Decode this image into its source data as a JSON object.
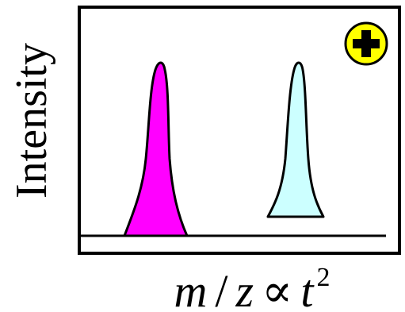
{
  "diagram": {
    "y_axis_label": "Intensity",
    "x_axis_label": {
      "m": "m",
      "slash": "/",
      "z": "z",
      "proportional": "∝",
      "t": "t",
      "exponent": "2"
    },
    "polarity_icon": "plus-icon",
    "colors": {
      "frame": "#000000",
      "peak_1": "#ff00ff",
      "peak_2": "#ccffff",
      "badge": "#ffff00"
    }
  }
}
